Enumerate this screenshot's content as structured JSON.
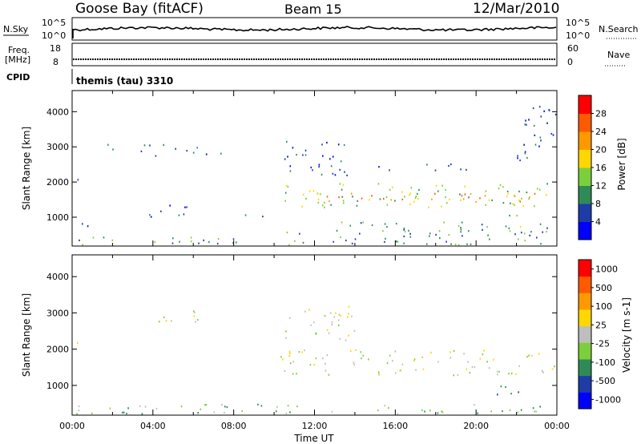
{
  "header": {
    "station": "Goose Bay (fitACF)",
    "beam": "Beam 15",
    "date": "12/Mar/2010"
  },
  "noise_panel": {
    "left_label": "N.Sky",
    "right_label": "N.Search",
    "left_ticks": [
      "10^5",
      "10^0"
    ],
    "right_ticks": [
      "10^5",
      "10^0"
    ]
  },
  "freq_panel": {
    "left_label_1": "Freq.",
    "left_label_2": "[MHz]",
    "left_ticks": [
      "18",
      "8"
    ],
    "right_label": "Nave",
    "right_ticks": [
      "60",
      "0"
    ]
  },
  "cpid": {
    "label": "CPID",
    "value": "themis (tau) 3310"
  },
  "chart_data": [
    {
      "type": "heatmap",
      "name": "power",
      "ylabel": "Slant Range [km]",
      "xlabel": "",
      "yticks": [
        1000,
        2000,
        3000,
        4000
      ],
      "xlim": [
        0,
        24
      ],
      "ylim": [
        180,
        4600
      ],
      "colorbar": {
        "label": "Power [dB]",
        "ticks": [
          "4",
          "8",
          "12",
          "16",
          "20",
          "24",
          "28"
        ],
        "colors": [
          "#0000ff",
          "#1e3ca8",
          "#2e8b57",
          "#7ccf3c",
          "#ffd700",
          "#ff9900",
          "#ff5a00",
          "#ff0000"
        ]
      },
      "regions": [
        {
          "t0": 0.0,
          "t1": 0.6,
          "r0": 2000,
          "r1": 2200,
          "level": 1
        },
        {
          "t0": 1.5,
          "t1": 2.3,
          "r0": 2850,
          "r1": 3100,
          "level": 1
        },
        {
          "t0": 3.3,
          "t1": 6.3,
          "r0": 2750,
          "r1": 3100,
          "level": 1
        },
        {
          "t0": 6.6,
          "t1": 7.5,
          "r0": 2650,
          "r1": 2900,
          "level": 1
        },
        {
          "t0": 3.5,
          "t1": 6.0,
          "r0": 1000,
          "r1": 1400,
          "level": 1
        },
        {
          "t0": 8.5,
          "t1": 9.5,
          "r0": 1000,
          "r1": 1250,
          "level": 2
        },
        {
          "t0": 0.3,
          "t1": 1.0,
          "r0": 600,
          "r1": 900,
          "level": 1
        },
        {
          "t0": 0.0,
          "t1": 10.0,
          "r0": 200,
          "r1": 450,
          "level": 2
        },
        {
          "t0": 10.3,
          "t1": 24.0,
          "r0": 1300,
          "r1": 2000,
          "level": 3
        },
        {
          "t0": 12.0,
          "t1": 23.0,
          "r0": 1400,
          "r1": 1700,
          "level": 5
        },
        {
          "t0": 10.5,
          "t1": 14.0,
          "r0": 2200,
          "r1": 3200,
          "level": 1
        },
        {
          "t0": 15.0,
          "t1": 20.0,
          "r0": 2350,
          "r1": 2550,
          "level": 1
        },
        {
          "t0": 22.0,
          "t1": 24.0,
          "r0": 2600,
          "r1": 4200,
          "level": 1
        },
        {
          "t0": 21.0,
          "t1": 22.5,
          "r0": 700,
          "r1": 1100,
          "level": 3
        },
        {
          "t0": 10.5,
          "t1": 24.0,
          "r0": 200,
          "r1": 900,
          "level": 2
        }
      ]
    },
    {
      "type": "heatmap",
      "name": "velocity",
      "ylabel": "Slant Range [km]",
      "xlabel": "Time UT",
      "yticks": [
        1000,
        2000,
        3000,
        4000
      ],
      "xticks": [
        "00:00",
        "04:00",
        "08:00",
        "12:00",
        "16:00",
        "20:00",
        "00:00"
      ],
      "xlim": [
        0,
        24
      ],
      "ylim": [
        180,
        4600
      ],
      "colorbar": {
        "label": "Velocity [m s-1]",
        "ticks": [
          "1000",
          "500",
          "100",
          "25",
          "-25",
          "-100",
          "-500",
          "-1000"
        ],
        "colors": [
          "#0000ff",
          "#1e3ca8",
          "#2e8b57",
          "#7ccf3c",
          "#bebebe",
          "#ffd700",
          "#ff9900",
          "#ff5a00",
          "#ff0000"
        ]
      },
      "regions": [
        {
          "t0": 0.0,
          "t1": 0.6,
          "r0": 2000,
          "r1": 2200,
          "level": 4
        },
        {
          "t0": 3.3,
          "t1": 6.3,
          "r0": 2750,
          "r1": 3100,
          "level": 4
        },
        {
          "t0": 10.3,
          "t1": 24.0,
          "r0": 1300,
          "r1": 2000,
          "level": 4
        },
        {
          "t0": 10.5,
          "t1": 14.0,
          "r0": 2200,
          "r1": 3200,
          "level": 4
        },
        {
          "t0": 21.0,
          "t1": 22.5,
          "r0": 700,
          "r1": 1100,
          "level": 2
        },
        {
          "t0": 0.0,
          "t1": 24.0,
          "r0": 200,
          "r1": 500,
          "level": 3
        }
      ]
    }
  ]
}
